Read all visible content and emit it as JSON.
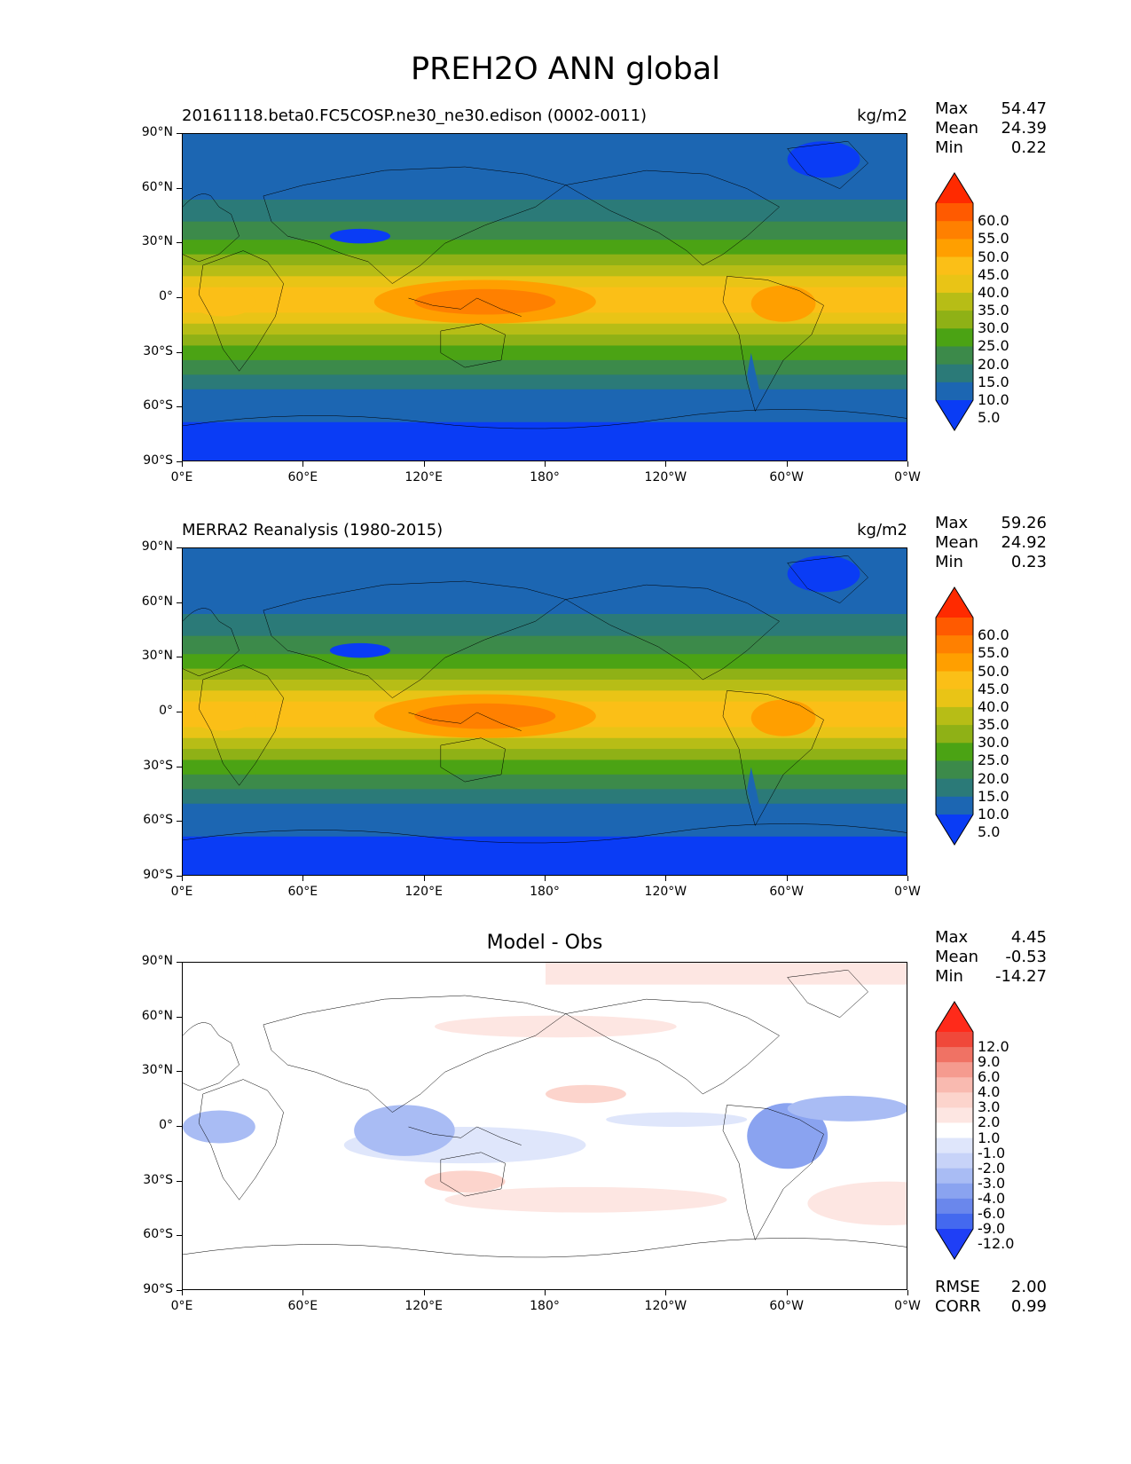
{
  "figure": {
    "title": "PREH2O ANN global"
  },
  "axes": {
    "lat_labels": [
      "90°N",
      "60°N",
      "30°N",
      "0°",
      "30°S",
      "60°S",
      "90°S"
    ],
    "lon_labels": [
      "0°E",
      "60°E",
      "120°E",
      "180°",
      "120°W",
      "60°W",
      "0°W"
    ]
  },
  "panels": [
    {
      "title": "20161118.beta0.FC5COSP.ne30_ne30.edison (0002-0011)",
      "units": "kg/m2",
      "stats": [
        {
          "label": "Max",
          "value": "54.47"
        },
        {
          "label": "Mean",
          "value": "24.39"
        },
        {
          "label": "Min",
          "value": "0.22"
        }
      ]
    },
    {
      "title": "MERRA2 Reanalysis (1980-2015)",
      "units": "kg/m2",
      "stats": [
        {
          "label": "Max",
          "value": "59.26"
        },
        {
          "label": "Mean",
          "value": "24.92"
        },
        {
          "label": "Min",
          "value": "0.23"
        }
      ]
    },
    {
      "title": "Model - Obs",
      "units": "",
      "stats": [
        {
          "label": "Max",
          "value": "4.45"
        },
        {
          "label": "Mean",
          "value": "-0.53"
        },
        {
          "label": "Min",
          "value": "-14.27"
        }
      ],
      "extra_stats": [
        {
          "label": "RMSE",
          "value": "2.00"
        },
        {
          "label": "CORR",
          "value": "0.99"
        }
      ]
    }
  ],
  "colorbars": {
    "abs": {
      "labels": [
        "60.0",
        "55.0",
        "50.0",
        "45.0",
        "40.0",
        "35.0",
        "30.0",
        "25.0",
        "20.0",
        "15.0",
        "10.0",
        "5.0"
      ],
      "colors": [
        "#ff2a00",
        "#ff5a00",
        "#ff8000",
        "#ff9f00",
        "#fbbf17",
        "#e9c416",
        "#b7bd16",
        "#8fb116",
        "#4ba314",
        "#3c8a4a",
        "#2b7a78",
        "#1c66b2",
        "#0a3cf5"
      ]
    },
    "diff": {
      "labels": [
        "12.0",
        "9.0",
        "6.0",
        "4.0",
        "3.0",
        "2.0",
        "1.0",
        "-1.0",
        "-2.0",
        "-3.0",
        "-4.0",
        "-6.0",
        "-9.0",
        "-12.0"
      ],
      "colors": [
        "#ff2a1a",
        "#f0483a",
        "#f07264",
        "#f59b8f",
        "#f9bab0",
        "#fcd4cc",
        "#fde6e2",
        "#ffffff",
        "#dfe6fb",
        "#c7d3f8",
        "#a9bcf4",
        "#8aa3f0",
        "#6a87ec",
        "#4469ef",
        "#1f3ff6"
      ]
    }
  }
}
